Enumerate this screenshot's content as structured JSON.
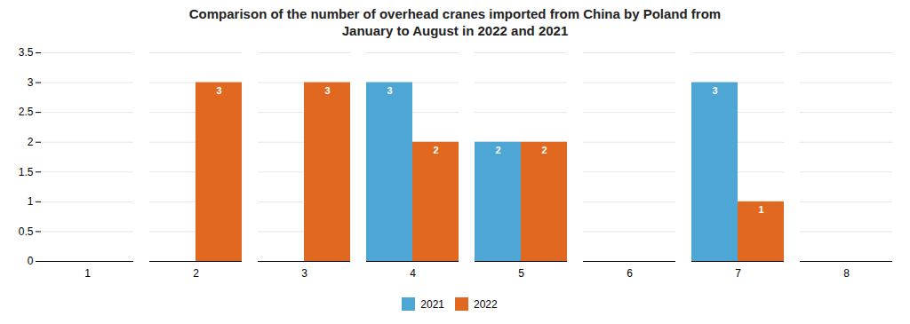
{
  "chart_data": {
    "type": "bar",
    "title": "Comparison of the number of overhead cranes imported from China by Poland from\nJanuary to August in 2022 and 2021",
    "categories": [
      "1",
      "2",
      "3",
      "4",
      "5",
      "6",
      "7",
      "8"
    ],
    "series": [
      {
        "name": "2021",
        "color": "#4da6d4",
        "values": [
          0,
          0,
          0,
          3,
          2,
          0,
          3,
          0
        ]
      },
      {
        "name": "2022",
        "color": "#e06820",
        "values": [
          0,
          3,
          3,
          2,
          2,
          0,
          1,
          0
        ]
      }
    ],
    "ylim": [
      0,
      3.5
    ],
    "yticks": [
      0,
      0.5,
      1,
      1.5,
      2,
      2.5,
      3,
      3.5
    ],
    "grid": true,
    "legend": "bottom",
    "data_labels": true
  }
}
